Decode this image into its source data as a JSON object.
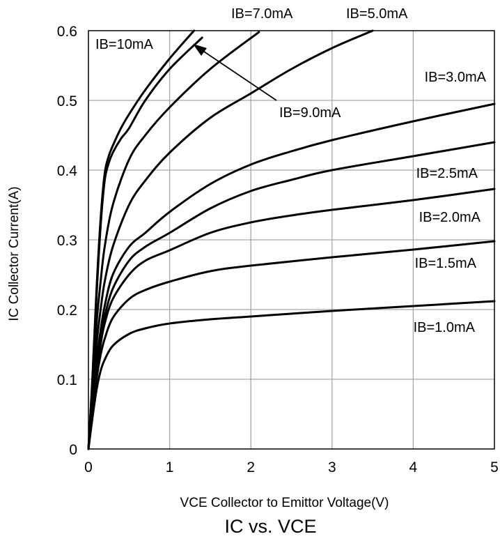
{
  "chart_data": {
    "type": "line",
    "title": "IC vs. VCE",
    "xlabel": "VCE Collector to Emittor Voltage(V)",
    "ylabel": "IC Collector Current(A)",
    "xlim": [
      0,
      5
    ],
    "ylim": [
      0,
      0.6
    ],
    "xticks": [
      "0",
      "1",
      "2",
      "3",
      "4",
      "5"
    ],
    "yticks": [
      "0",
      "0.1",
      "0.2",
      "0.3",
      "0.4",
      "0.5",
      "0.6"
    ],
    "grid": true,
    "series": [
      {
        "name": "IB=1.0mA",
        "x": [
          0,
          0.05,
          0.1,
          0.15,
          0.2,
          0.3,
          0.5,
          0.7,
          1.0,
          1.5,
          2.0,
          3.0,
          4.0,
          5.0
        ],
        "values": [
          0,
          0.045,
          0.085,
          0.112,
          0.128,
          0.148,
          0.165,
          0.173,
          0.18,
          0.186,
          0.19,
          0.198,
          0.205,
          0.212
        ]
      },
      {
        "name": "IB=1.5mA",
        "x": [
          0,
          0.05,
          0.1,
          0.15,
          0.2,
          0.3,
          0.5,
          0.7,
          1.0,
          1.5,
          2.0,
          3.0,
          4.0,
          5.0
        ],
        "values": [
          0,
          0.05,
          0.1,
          0.135,
          0.158,
          0.188,
          0.215,
          0.228,
          0.24,
          0.255,
          0.263,
          0.275,
          0.286,
          0.298
        ]
      },
      {
        "name": "IB=2.0mA",
        "x": [
          0,
          0.05,
          0.1,
          0.15,
          0.2,
          0.3,
          0.5,
          0.7,
          1.0,
          1.5,
          2.0,
          2.5,
          3.0,
          4.0,
          5.0
        ],
        "values": [
          0,
          0.055,
          0.11,
          0.15,
          0.18,
          0.215,
          0.25,
          0.27,
          0.285,
          0.31,
          0.325,
          0.335,
          0.343,
          0.357,
          0.373
        ]
      },
      {
        "name": "IB=2.5mA",
        "x": [
          0,
          0.05,
          0.1,
          0.15,
          0.2,
          0.3,
          0.5,
          0.7,
          1.0,
          1.5,
          2.0,
          2.5,
          3.0,
          4.0,
          5.0
        ],
        "values": [
          0,
          0.058,
          0.115,
          0.16,
          0.19,
          0.23,
          0.27,
          0.29,
          0.31,
          0.345,
          0.37,
          0.386,
          0.4,
          0.42,
          0.44
        ]
      },
      {
        "name": "IB=3.0mA",
        "x": [
          0,
          0.05,
          0.1,
          0.15,
          0.2,
          0.3,
          0.5,
          0.7,
          1.0,
          1.5,
          2.0,
          2.5,
          3.0,
          4.0,
          5.0
        ],
        "values": [
          0,
          0.062,
          0.125,
          0.17,
          0.205,
          0.25,
          0.29,
          0.31,
          0.34,
          0.38,
          0.408,
          0.427,
          0.443,
          0.47,
          0.495
        ]
      },
      {
        "name": "IB=5.0mA",
        "x": [
          0,
          0.05,
          0.1,
          0.15,
          0.2,
          0.3,
          0.5,
          0.7,
          1.0,
          1.5,
          2.0,
          2.5,
          3.0,
          3.5
        ],
        "values": [
          0,
          0.075,
          0.15,
          0.2,
          0.24,
          0.29,
          0.35,
          0.385,
          0.425,
          0.475,
          0.51,
          0.545,
          0.575,
          0.6
        ]
      },
      {
        "name": "IB=7.0mA",
        "x": [
          0,
          0.05,
          0.1,
          0.15,
          0.2,
          0.3,
          0.5,
          0.7,
          1.0,
          1.5,
          2.1
        ],
        "values": [
          0,
          0.09,
          0.18,
          0.24,
          0.29,
          0.35,
          0.415,
          0.45,
          0.49,
          0.545,
          0.598
        ]
      },
      {
        "name": "IB=9.0mA",
        "x": [
          0,
          0.05,
          0.1,
          0.15,
          0.2,
          0.25,
          0.3,
          0.4,
          0.5,
          0.7,
          1.0,
          1.4
        ],
        "values": [
          0,
          0.1,
          0.22,
          0.32,
          0.385,
          0.41,
          0.425,
          0.445,
          0.46,
          0.5,
          0.545,
          0.59
        ]
      },
      {
        "name": "IB=10mA",
        "x": [
          0,
          0.05,
          0.1,
          0.15,
          0.2,
          0.25,
          0.3,
          0.4,
          0.5,
          0.7,
          1.0,
          1.3
        ],
        "values": [
          0,
          0.105,
          0.23,
          0.33,
          0.395,
          0.42,
          0.435,
          0.46,
          0.48,
          0.515,
          0.56,
          0.6
        ]
      }
    ],
    "labels": [
      {
        "text": "IB=10mA"
      },
      {
        "text": "IB=7.0mA"
      },
      {
        "text": "IB=5.0mA"
      },
      {
        "text": "IB=3.0mA"
      },
      {
        "text": "IB=9.0mA"
      },
      {
        "text": "IB=2.5mA"
      },
      {
        "text": "IB=2.0mA"
      },
      {
        "text": "IB=1.5mA"
      },
      {
        "text": "IB=1.0mA"
      }
    ]
  }
}
